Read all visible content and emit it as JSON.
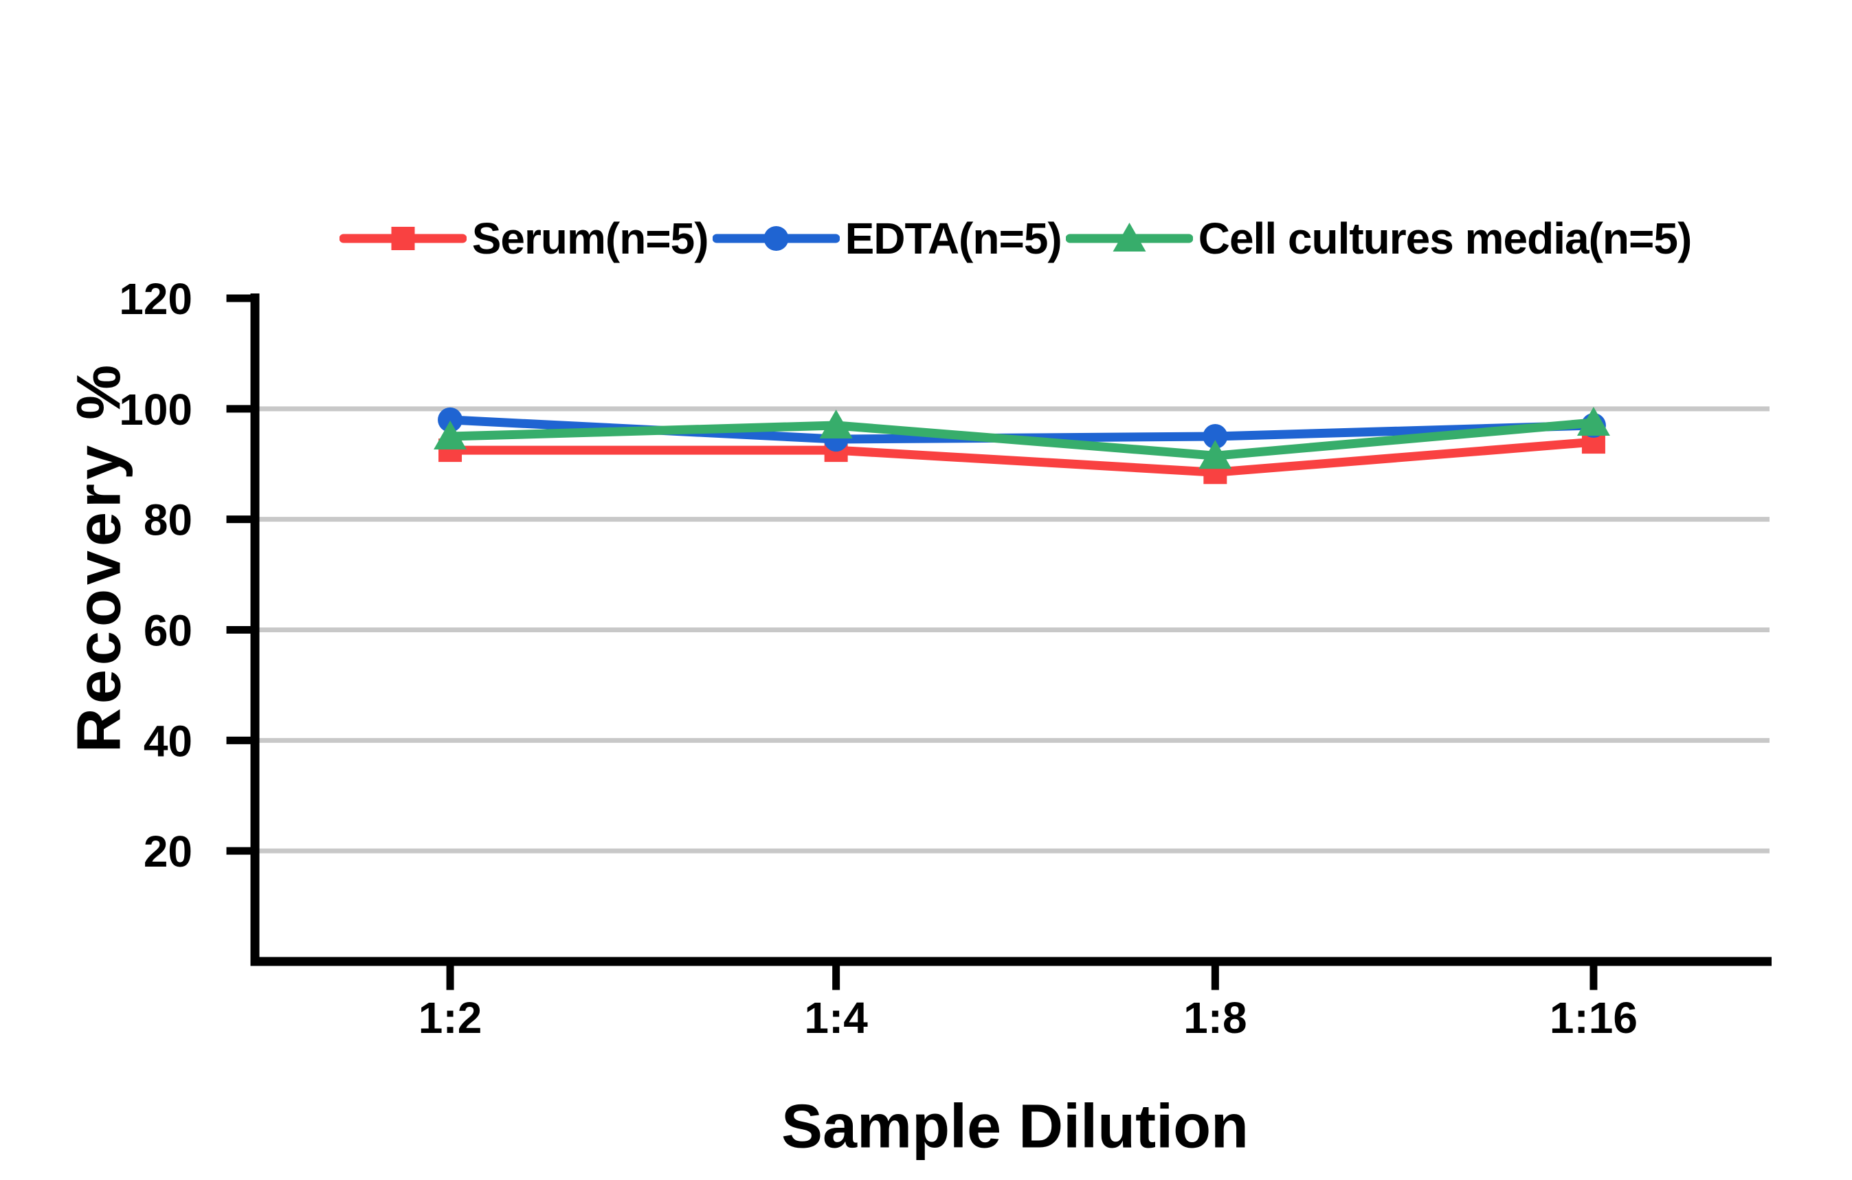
{
  "figure": {
    "background": "#ffffff"
  },
  "chart_data": {
    "type": "line",
    "title": "",
    "categories": [
      "1:2",
      "1:4",
      "1:8",
      "1:16"
    ],
    "series": [
      {
        "name": "Serum(n=5)",
        "color": "#F94141",
        "marker": "square",
        "values": [
          92.5,
          92.5,
          88.5,
          94
        ]
      },
      {
        "name": "EDTA(n=5)",
        "color": "#1F64D2",
        "marker": "circle",
        "values": [
          98,
          94.5,
          95,
          97
        ]
      },
      {
        "name": "Cell cultures media(n=5)",
        "color": "#37AD6B",
        "marker": "triangle",
        "values": [
          95,
          97,
          91.5,
          97.5
        ]
      }
    ],
    "xlabel": "Sample Dilution",
    "ylabel": "Recovery %",
    "ylim": [
      0,
      120
    ],
    "yticks": [
      20,
      40,
      60,
      80,
      100,
      120
    ],
    "gridline_values": [
      20,
      40,
      60,
      80,
      100
    ],
    "grid": true,
    "legend_position": "top",
    "axis_color": "#000000",
    "gridline_color": "#C8C8C8",
    "tick_label_color": "#000000"
  }
}
